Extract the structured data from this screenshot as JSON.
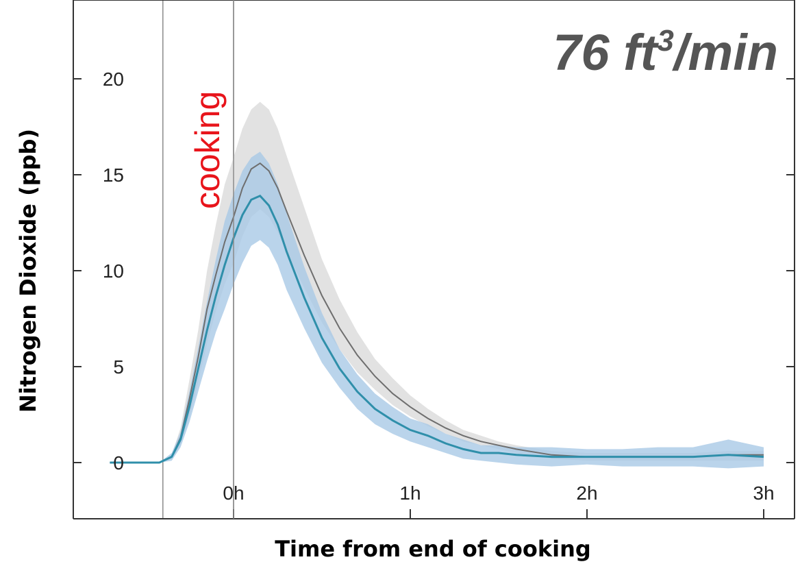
{
  "chart_data": {
    "type": "line",
    "title": "76 ft3/min",
    "title_parts": {
      "main": "76 ft",
      "sup": "3",
      "tail": "/min"
    },
    "xlabel": "Time from end of cooking",
    "ylabel": "Nitrogen Dioxide (ppb)",
    "annotation": "cooking",
    "x_unit": "hours relative to end of cooking",
    "xlim": [
      -0.9,
      3.15
    ],
    "ylim": [
      -3,
      24
    ],
    "cooking_period": [
      -0.4,
      0
    ],
    "x_ticks": [
      {
        "value": 0,
        "label": "0h"
      },
      {
        "value": 1,
        "label": "1h"
      },
      {
        "value": 2,
        "label": "2h"
      },
      {
        "value": 3,
        "label": "3h"
      }
    ],
    "y_ticks": [
      {
        "value": 0,
        "label": "0"
      },
      {
        "value": 5,
        "label": "5"
      },
      {
        "value": 10,
        "label": "10"
      },
      {
        "value": 15,
        "label": "15"
      },
      {
        "value": 20,
        "label": "20"
      }
    ],
    "grid": false,
    "colors": {
      "gray_band": "#e2e2e2",
      "gray_line": "#6e6e6e",
      "blue_band": "#a9c9e6",
      "blue_inner": "#8fb6dc",
      "blue_line": "#2f8faa",
      "axis": "#333333"
    },
    "series": [
      {
        "x": [
          -0.7,
          -0.42,
          -0.35,
          -0.3,
          -0.25,
          -0.2,
          -0.15,
          -0.1,
          -0.05,
          0,
          0.05,
          0.1,
          0.15,
          0.2,
          0.25,
          0.3,
          0.4,
          0.5,
          0.6,
          0.7,
          0.8,
          0.9,
          1.0,
          1.1,
          1.2,
          1.3,
          1.4,
          1.5,
          1.6,
          1.8,
          2.0,
          2.2,
          2.4,
          2.6,
          2.8,
          3.0
        ],
        "y": [
          0,
          0,
          0.3,
          1.3,
          3.3,
          5.5,
          8.0,
          9.8,
          11.5,
          12.8,
          14.3,
          15.3,
          15.6,
          15.2,
          14.3,
          13.1,
          10.8,
          8.7,
          7.0,
          5.6,
          4.5,
          3.6,
          2.9,
          2.3,
          1.8,
          1.4,
          1.1,
          0.9,
          0.7,
          0.4,
          0.3,
          0.3,
          0.3,
          0.3,
          0.4,
          0.4
        ],
        "lower": [
          0,
          0,
          0.2,
          0.9,
          2.4,
          4.2,
          6.2,
          7.9,
          9.3,
          10.4,
          11.8,
          12.8,
          13.2,
          12.8,
          12.0,
          11.0,
          9.1,
          7.3,
          5.9,
          4.7,
          3.8,
          3.0,
          2.4,
          1.9,
          1.5,
          1.1,
          0.9,
          0.7,
          0.5,
          0.2,
          0.1,
          0.1,
          0.1,
          0.1,
          0.1,
          0.1
        ],
        "upper": [
          0,
          0,
          0.4,
          1.8,
          4.3,
          6.9,
          10.0,
          12.4,
          14.5,
          15.9,
          17.4,
          18.4,
          18.8,
          18.4,
          17.4,
          16.0,
          13.3,
          10.6,
          8.5,
          6.8,
          5.4,
          4.4,
          3.5,
          2.8,
          2.2,
          1.7,
          1.4,
          1.1,
          0.9,
          0.6,
          0.5,
          0.5,
          0.5,
          0.5,
          0.6,
          0.6
        ]
      },
      {
        "x": [
          -0.7,
          -0.42,
          -0.35,
          -0.3,
          -0.25,
          -0.2,
          -0.15,
          -0.1,
          -0.05,
          0,
          0.05,
          0.1,
          0.15,
          0.2,
          0.25,
          0.3,
          0.4,
          0.5,
          0.6,
          0.7,
          0.8,
          0.9,
          1.0,
          1.1,
          1.2,
          1.3,
          1.4,
          1.5,
          1.6,
          1.8,
          2.0,
          2.2,
          2.4,
          2.6,
          2.8,
          3.0
        ],
        "y": [
          0,
          0,
          0.3,
          1.2,
          2.9,
          4.9,
          6.9,
          8.7,
          10.3,
          11.7,
          12.9,
          13.7,
          13.9,
          13.4,
          12.4,
          11.0,
          8.6,
          6.5,
          4.9,
          3.7,
          2.8,
          2.2,
          1.7,
          1.4,
          1.0,
          0.7,
          0.5,
          0.5,
          0.4,
          0.3,
          0.3,
          0.3,
          0.3,
          0.3,
          0.4,
          0.3
        ],
        "lower": [
          0,
          0,
          0.1,
          0.8,
          2.1,
          3.7,
          5.3,
          6.8,
          8.0,
          9.3,
          10.4,
          11.3,
          11.6,
          11.2,
          10.3,
          9.0,
          7.0,
          5.2,
          3.9,
          2.8,
          2.0,
          1.5,
          1.1,
          0.8,
          0.5,
          0.2,
          0.1,
          0.0,
          -0.1,
          -0.2,
          -0.1,
          -0.2,
          -0.2,
          -0.2,
          -0.3,
          -0.2
        ],
        "upper": [
          0,
          0,
          0.5,
          1.6,
          3.7,
          6.0,
          8.4,
          10.6,
          12.6,
          14.0,
          15.2,
          15.9,
          16.2,
          15.6,
          14.5,
          13.0,
          10.2,
          7.8,
          5.9,
          4.6,
          3.6,
          2.9,
          2.3,
          2.0,
          1.5,
          1.2,
          0.9,
          0.9,
          0.8,
          0.8,
          0.7,
          0.7,
          0.8,
          0.8,
          1.2,
          0.8
        ]
      }
    ]
  }
}
